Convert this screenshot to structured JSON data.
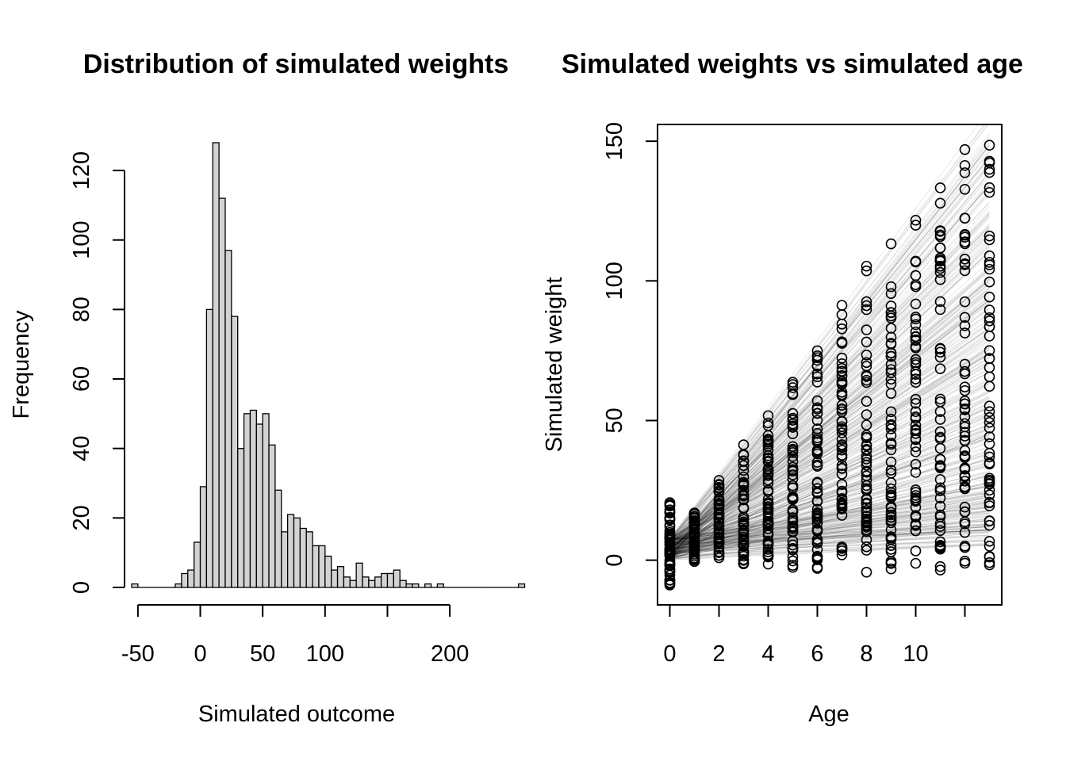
{
  "chart_data": [
    {
      "type": "bar",
      "title": "Distribution of simulated weights",
      "xlabel": "Simulated outcome",
      "ylabel": "Frequency",
      "xlim": [
        -55,
        205
      ],
      "ylim": [
        0,
        128
      ],
      "bin_width": 5,
      "bin_start": -55,
      "counts": [
        1,
        0,
        0,
        0,
        0,
        0,
        0,
        1,
        4,
        5,
        13,
        29,
        80,
        128,
        112,
        97,
        78,
        40,
        50,
        51,
        47,
        50,
        41,
        28,
        16,
        21,
        20,
        17,
        16,
        12,
        12,
        9,
        5,
        6,
        3,
        2,
        7,
        3,
        2,
        3,
        4,
        4,
        5,
        2,
        1,
        1,
        0,
        1,
        0,
        1,
        0,
        0,
        0,
        0,
        0,
        0,
        0,
        0,
        0,
        0,
        0,
        0,
        1
      ],
      "xticks": [
        -50,
        0,
        50,
        100,
        200
      ],
      "xtick_labels": [
        "-50",
        "0",
        "50",
        "100",
        "200"
      ],
      "extra_xticks": [
        150
      ],
      "yticks": [
        0,
        20,
        40,
        60,
        80,
        100,
        120
      ],
      "ytick_labels": [
        "0",
        "20",
        "40",
        "60",
        "80",
        "100",
        "120"
      ],
      "bar_fill": "#d3d3d3"
    },
    {
      "type": "scatter",
      "title": "Simulated weights vs simulated age",
      "xlabel": "Age",
      "ylabel": "Simulated weight",
      "xlim": [
        -0.5,
        13.5
      ],
      "ylim": [
        -16,
        156
      ],
      "ages": [
        0,
        1,
        2,
        3,
        4,
        5,
        6,
        7,
        8,
        9,
        10,
        11,
        12,
        13
      ],
      "xticks": [
        0,
        2,
        4,
        6,
        8,
        10,
        12
      ],
      "xtick_labels": [
        "0",
        "2",
        "4",
        "6",
        "8",
        "10",
        ""
      ],
      "yticks": [
        0,
        50,
        100,
        150
      ],
      "ytick_labels": [
        "0",
        "50",
        "100",
        "150"
      ],
      "points_per_age": 60,
      "lines": 400,
      "intercept_range": [
        0,
        8
      ],
      "slope_range": [
        0.3,
        12
      ],
      "line_color": "#000000",
      "point_color": "#000000"
    }
  ]
}
